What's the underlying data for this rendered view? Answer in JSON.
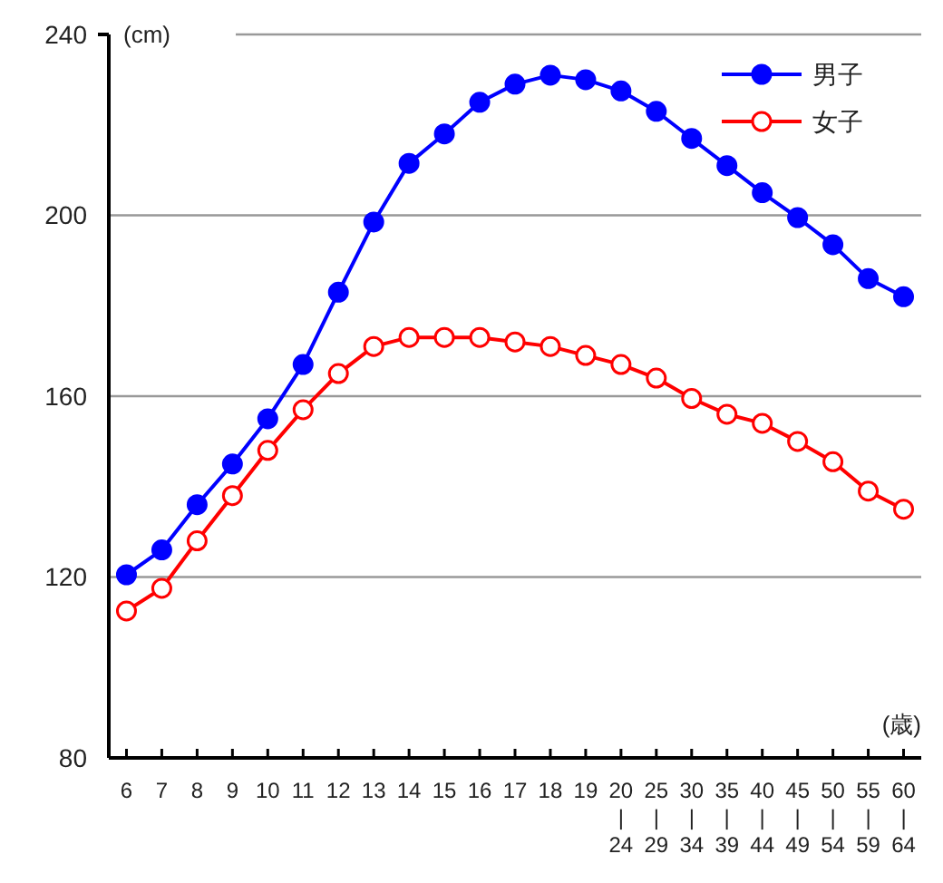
{
  "chart_data": {
    "type": "line",
    "ylabel": "(cm)",
    "xlabel": "(歳)",
    "categories": [
      "6",
      "7",
      "8",
      "9",
      "10",
      "11",
      "12",
      "13",
      "14",
      "15",
      "16",
      "17",
      "18",
      "19",
      "20\n|\n24",
      "25\n|\n29",
      "30\n|\n34",
      "35\n|\n39",
      "40\n|\n44",
      "45\n|\n49",
      "50\n|\n54",
      "55\n|\n59",
      "60\n|\n64"
    ],
    "series": [
      {
        "name": "男子",
        "color": "#0000ff",
        "marker": "circle",
        "values": [
          120.5,
          126,
          136,
          145,
          155,
          167,
          183,
          198.5,
          211.5,
          218,
          225,
          229,
          231,
          230,
          227.5,
          223,
          217,
          211,
          205,
          199.5,
          193.5,
          186,
          182
        ]
      },
      {
        "name": "女子",
        "color": "#ff0000",
        "marker": "circle",
        "values": [
          112.5,
          117.5,
          128,
          138,
          148,
          157,
          165,
          171,
          173,
          173,
          173,
          172,
          171,
          169,
          167,
          164,
          159.5,
          156,
          154,
          150,
          145.5,
          139,
          135
        ]
      }
    ],
    "ylim": [
      80,
      240
    ],
    "yticks": [
      80,
      120,
      160,
      200,
      240
    ],
    "grid": "y",
    "legend": "top right"
  }
}
